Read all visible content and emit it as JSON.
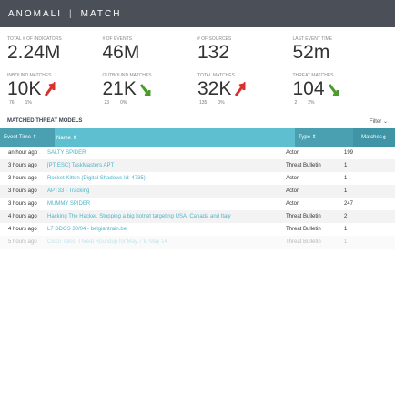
{
  "header": {
    "brand": "ANOMALI",
    "product": "MATCH"
  },
  "stats_top": [
    {
      "label": "TOTAL # OF INDICATORS",
      "value": "2.24M"
    },
    {
      "label": "# OF EVENTS",
      "value": "46M"
    },
    {
      "label": "# OF SOURCES",
      "value": "132"
    },
    {
      "label": "LAST EVENT TIME",
      "value": "52m"
    }
  ],
  "stats_bottom": [
    {
      "label": "INBOUND MATCHES",
      "value": "10K",
      "change": "76",
      "percent": "1%",
      "trend": "up"
    },
    {
      "label": "OUTBOUND MATCHES",
      "value": "21K",
      "change": "23",
      "percent": "0%",
      "trend": "down"
    },
    {
      "label": "TOTAL MATCHES",
      "value": "32K",
      "change": "135",
      "percent": "0%",
      "trend": "up"
    },
    {
      "label": "THREAT MATCHES",
      "value": "104",
      "change": "2",
      "percent": "2%",
      "trend": "down"
    }
  ],
  "section": {
    "title": "MATCHED THREAT MODELS",
    "filter": "Filter"
  },
  "table": {
    "columns": [
      "Event Time",
      "Name",
      "Type",
      "Matches"
    ],
    "rows": [
      [
        "an hour ago",
        "SALTY SPIDER",
        "Actor",
        "199"
      ],
      [
        "3 hours ago",
        "[PT ESC] TaskMasters APT",
        "Threat Bulletin",
        "1"
      ],
      [
        "3 hours ago",
        "Rocket Kitten (Digital Shadows Id: 4735)",
        "Actor",
        "1"
      ],
      [
        "3 hours ago",
        "APT33 - Tracking",
        "Actor",
        "1"
      ],
      [
        "3 hours ago",
        "MUMMY SPIDER",
        "Actor",
        "247"
      ],
      [
        "4 hours ago",
        "Hacking The Hacker, Stopping a big botnet targeting USA, Canada and Italy",
        "Threat Bulletin",
        "2"
      ],
      [
        "4 hours ago",
        "L7 DDOS 30/04 - belgiantrain.be",
        "Threat Bulletin",
        "1"
      ],
      [
        "5 hours ago",
        "Cisco Talos: Threat Roundup for May 7 to May 14",
        "Threat Bulletin",
        "1"
      ]
    ]
  }
}
